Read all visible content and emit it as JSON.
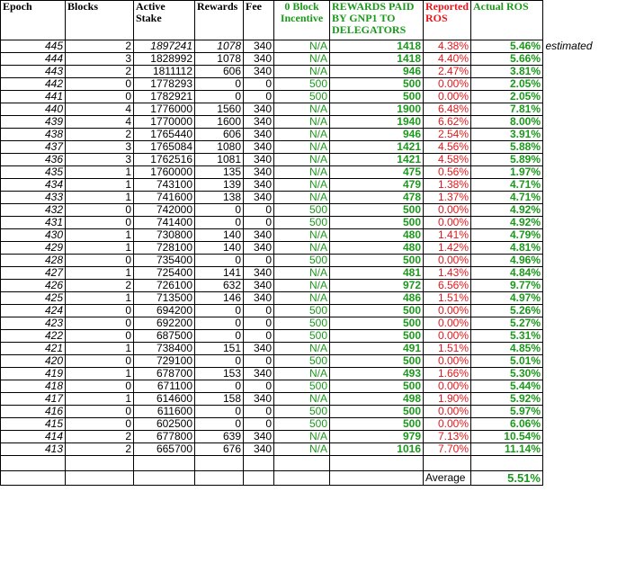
{
  "headers": {
    "epoch": "Epoch",
    "blocks": "Blocks",
    "active_stake": "Active Stake",
    "rewards": "Rewards",
    "fee": "Fee",
    "zero_block": "0 Block Incentive",
    "paid": "REWARDS PAID BY GNP1 TO DELEGATORS",
    "reported": "Reported ROS",
    "actual": "Actual ROS"
  },
  "colors": {
    "green": "#1a9a1a",
    "red": "#e8161a"
  },
  "rows": [
    {
      "epoch": "445",
      "blocks": "2",
      "stake": "1897241",
      "rewards": "1078",
      "fee": "340",
      "zero": "N/A",
      "paid": "1418",
      "reported": "4.38%",
      "actual": "5.46%",
      "note": "estimated"
    },
    {
      "epoch": "444",
      "blocks": "3",
      "stake": "1828992",
      "rewards": "1078",
      "fee": "340",
      "zero": "N/A",
      "paid": "1418",
      "reported": "4.40%",
      "actual": "5.66%"
    },
    {
      "epoch": "443",
      "blocks": "2",
      "stake": "1811112",
      "rewards": "606",
      "fee": "340",
      "zero": "N/A",
      "paid": "946",
      "reported": "2.47%",
      "actual": "3.81%"
    },
    {
      "epoch": "442",
      "blocks": "0",
      "stake": "1778293",
      "rewards": "0",
      "fee": "0",
      "zero": "500",
      "paid": "500",
      "reported": "0.00%",
      "actual": "2.05%"
    },
    {
      "epoch": "441",
      "blocks": "0",
      "stake": "1782921",
      "rewards": "0",
      "fee": "0",
      "zero": "500",
      "paid": "500",
      "reported": "0.00%",
      "actual": "2.05%"
    },
    {
      "epoch": "440",
      "blocks": "4",
      "stake": "1776000",
      "rewards": "1560",
      "fee": "340",
      "zero": "N/A",
      "paid": "1900",
      "reported": "6.48%",
      "actual": "7.81%"
    },
    {
      "epoch": "439",
      "blocks": "4",
      "stake": "1770000",
      "rewards": "1600",
      "fee": "340",
      "zero": "N/A",
      "paid": "1940",
      "reported": "6.62%",
      "actual": "8.00%"
    },
    {
      "epoch": "438",
      "blocks": "2",
      "stake": "1765440",
      "rewards": "606",
      "fee": "340",
      "zero": "N/A",
      "paid": "946",
      "reported": "2.54%",
      "actual": "3.91%"
    },
    {
      "epoch": "437",
      "blocks": "3",
      "stake": "1765084",
      "rewards": "1080",
      "fee": "340",
      "zero": "N/A",
      "paid": "1421",
      "reported": "4.56%",
      "actual": "5.88%"
    },
    {
      "epoch": "436",
      "blocks": "3",
      "stake": "1762516",
      "rewards": "1081",
      "fee": "340",
      "zero": "N/A",
      "paid": "1421",
      "reported": "4.58%",
      "actual": "5.89%"
    },
    {
      "epoch": "435",
      "blocks": "1",
      "stake": "1760000",
      "rewards": "135",
      "fee": "340",
      "zero": "N/A",
      "paid": "475",
      "reported": "0.56%",
      "actual": "1.97%"
    },
    {
      "epoch": "434",
      "blocks": "1",
      "stake": "743100",
      "rewards": "139",
      "fee": "340",
      "zero": "N/A",
      "paid": "479",
      "reported": "1.38%",
      "actual": "4.71%"
    },
    {
      "epoch": "433",
      "blocks": "1",
      "stake": "741600",
      "rewards": "138",
      "fee": "340",
      "zero": "N/A",
      "paid": "478",
      "reported": "1.37%",
      "actual": "4.71%"
    },
    {
      "epoch": "432",
      "blocks": "0",
      "stake": "742000",
      "rewards": "0",
      "fee": "0",
      "zero": "500",
      "paid": "500",
      "reported": "0.00%",
      "actual": "4.92%"
    },
    {
      "epoch": "431",
      "blocks": "0",
      "stake": "741400",
      "rewards": "0",
      "fee": "0",
      "zero": "500",
      "paid": "500",
      "reported": "0.00%",
      "actual": "4.92%"
    },
    {
      "epoch": "430",
      "blocks": "1",
      "stake": "730800",
      "rewards": "140",
      "fee": "340",
      "zero": "N/A",
      "paid": "480",
      "reported": "1.41%",
      "actual": "4.79%"
    },
    {
      "epoch": "429",
      "blocks": "1",
      "stake": "728100",
      "rewards": "140",
      "fee": "340",
      "zero": "N/A",
      "paid": "480",
      "reported": "1.42%",
      "actual": "4.81%"
    },
    {
      "epoch": "428",
      "blocks": "0",
      "stake": "735400",
      "rewards": "0",
      "fee": "0",
      "zero": "500",
      "paid": "500",
      "reported": "0.00%",
      "actual": "4.96%"
    },
    {
      "epoch": "427",
      "blocks": "1",
      "stake": "725400",
      "rewards": "141",
      "fee": "340",
      "zero": "N/A",
      "paid": "481",
      "reported": "1.43%",
      "actual": "4.84%"
    },
    {
      "epoch": "426",
      "blocks": "2",
      "stake": "726100",
      "rewards": "632",
      "fee": "340",
      "zero": "N/A",
      "paid": "972",
      "reported": "6.56%",
      "actual": "9.77%"
    },
    {
      "epoch": "425",
      "blocks": "1",
      "stake": "713500",
      "rewards": "146",
      "fee": "340",
      "zero": "N/A",
      "paid": "486",
      "reported": "1.51%",
      "actual": "4.97%"
    },
    {
      "epoch": "424",
      "blocks": "0",
      "stake": "694200",
      "rewards": "0",
      "fee": "0",
      "zero": "500",
      "paid": "500",
      "reported": "0.00%",
      "actual": "5.26%"
    },
    {
      "epoch": "423",
      "blocks": "0",
      "stake": "692200",
      "rewards": "0",
      "fee": "0",
      "zero": "500",
      "paid": "500",
      "reported": "0.00%",
      "actual": "5.27%"
    },
    {
      "epoch": "422",
      "blocks": "0",
      "stake": "687500",
      "rewards": "0",
      "fee": "0",
      "zero": "500",
      "paid": "500",
      "reported": "0.00%",
      "actual": "5.31%"
    },
    {
      "epoch": "421",
      "blocks": "1",
      "stake": "738400",
      "rewards": "151",
      "fee": "340",
      "zero": "N/A",
      "paid": "491",
      "reported": "1.51%",
      "actual": "4.85%"
    },
    {
      "epoch": "420",
      "blocks": "0",
      "stake": "729100",
      "rewards": "0",
      "fee": "0",
      "zero": "500",
      "paid": "500",
      "reported": "0.00%",
      "actual": "5.01%"
    },
    {
      "epoch": "419",
      "blocks": "1",
      "stake": "678700",
      "rewards": "153",
      "fee": "340",
      "zero": "N/A",
      "paid": "493",
      "reported": "1.66%",
      "actual": "5.30%"
    },
    {
      "epoch": "418",
      "blocks": "0",
      "stake": "671100",
      "rewards": "0",
      "fee": "0",
      "zero": "500",
      "paid": "500",
      "reported": "0.00%",
      "actual": "5.44%"
    },
    {
      "epoch": "417",
      "blocks": "1",
      "stake": "614600",
      "rewards": "158",
      "fee": "340",
      "zero": "N/A",
      "paid": "498",
      "reported": "1.90%",
      "actual": "5.92%"
    },
    {
      "epoch": "416",
      "blocks": "0",
      "stake": "611600",
      "rewards": "0",
      "fee": "0",
      "zero": "500",
      "paid": "500",
      "reported": "0.00%",
      "actual": "5.97%"
    },
    {
      "epoch": "415",
      "blocks": "0",
      "stake": "602500",
      "rewards": "0",
      "fee": "0",
      "zero": "500",
      "paid": "500",
      "reported": "0.00%",
      "actual": "6.06%"
    },
    {
      "epoch": "414",
      "blocks": "2",
      "stake": "677800",
      "rewards": "639",
      "fee": "340",
      "zero": "N/A",
      "paid": "979",
      "reported": "7.13%",
      "actual": "10.54%"
    },
    {
      "epoch": "413",
      "blocks": "2",
      "stake": "665700",
      "rewards": "676",
      "fee": "340",
      "zero": "N/A",
      "paid": "1016",
      "reported": "7.70%",
      "actual": "11.14%"
    }
  ],
  "average_label": "Average",
  "average_value": "5.51%"
}
